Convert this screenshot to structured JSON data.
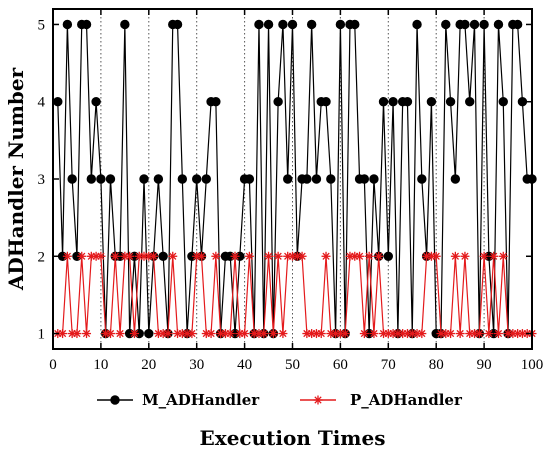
{
  "chart_data": {
    "type": "line",
    "title": "",
    "xlabel": "Execution Times",
    "ylabel": "ADHandler Number",
    "xlim": [
      0,
      100
    ],
    "ylim": [
      0.8,
      5.2
    ],
    "xticks": [
      0,
      10,
      20,
      30,
      40,
      50,
      60,
      70,
      80,
      90,
      100
    ],
    "yticks": [
      1,
      2,
      3,
      4,
      5
    ],
    "grid": "vertical-dotted",
    "legend_position": "bottom",
    "x": [
      1,
      2,
      3,
      4,
      5,
      6,
      7,
      8,
      9,
      10,
      11,
      12,
      13,
      14,
      15,
      16,
      17,
      18,
      19,
      20,
      21,
      22,
      23,
      24,
      25,
      26,
      27,
      28,
      29,
      30,
      31,
      32,
      33,
      34,
      35,
      36,
      37,
      38,
      39,
      40,
      41,
      42,
      43,
      44,
      45,
      46,
      47,
      48,
      49,
      50,
      51,
      52,
      53,
      54,
      55,
      56,
      57,
      58,
      59,
      60,
      61,
      62,
      63,
      64,
      65,
      66,
      67,
      68,
      69,
      70,
      71,
      72,
      73,
      74,
      75,
      76,
      77,
      78,
      79,
      80,
      81,
      82,
      83,
      84,
      85,
      86,
      87,
      88,
      89,
      90,
      91,
      92,
      93,
      94,
      95,
      96,
      97,
      98,
      99,
      100
    ],
    "series": [
      {
        "name": "M_ADHandler",
        "color": "#000000",
        "marker": "circle",
        "values": [
          4,
          2,
          5,
          3,
          2,
          5,
          5,
          3,
          4,
          3,
          1,
          3,
          2,
          2,
          5,
          1,
          2,
          1,
          3,
          1,
          2,
          3,
          2,
          1,
          5,
          5,
          3,
          1,
          2,
          3,
          2,
          3,
          4,
          4,
          1,
          2,
          2,
          1,
          2,
          3,
          3,
          1,
          5,
          1,
          5,
          1,
          4,
          5,
          3,
          5,
          2,
          3,
          3,
          5,
          3,
          4,
          4,
          3,
          1,
          5,
          1,
          5,
          5,
          3,
          3,
          1,
          3,
          2,
          4,
          2,
          4,
          1,
          4,
          4,
          1,
          5,
          3,
          2,
          4,
          1,
          1,
          5,
          4,
          3,
          5,
          5,
          4,
          5,
          1,
          5,
          2,
          1,
          5,
          4,
          1,
          5,
          5,
          4,
          3,
          3
        ]
      },
      {
        "name": "P_ADHandler",
        "color": "#e41a1c",
        "marker": "asterisk",
        "values": [
          1,
          1,
          2,
          1,
          1,
          2,
          1,
          2,
          2,
          2,
          1,
          1,
          2,
          1,
          2,
          2,
          1,
          2,
          2,
          2,
          2,
          1,
          1,
          1,
          2,
          1,
          1,
          1,
          1,
          2,
          2,
          1,
          1,
          2,
          1,
          1,
          1,
          2,
          1,
          1,
          2,
          1,
          1,
          1,
          2,
          1,
          2,
          1,
          2,
          2,
          2,
          2,
          1,
          1,
          1,
          1,
          2,
          1,
          1,
          1,
          1,
          2,
          2,
          2,
          1,
          2,
          1,
          2,
          1,
          1,
          1,
          1,
          1,
          1,
          1,
          1,
          1,
          2,
          2,
          2,
          1,
          1,
          1,
          2,
          1,
          2,
          1,
          1,
          1,
          2,
          1,
          2,
          1,
          2,
          1,
          1,
          1,
          1,
          1,
          1
        ]
      }
    ]
  }
}
